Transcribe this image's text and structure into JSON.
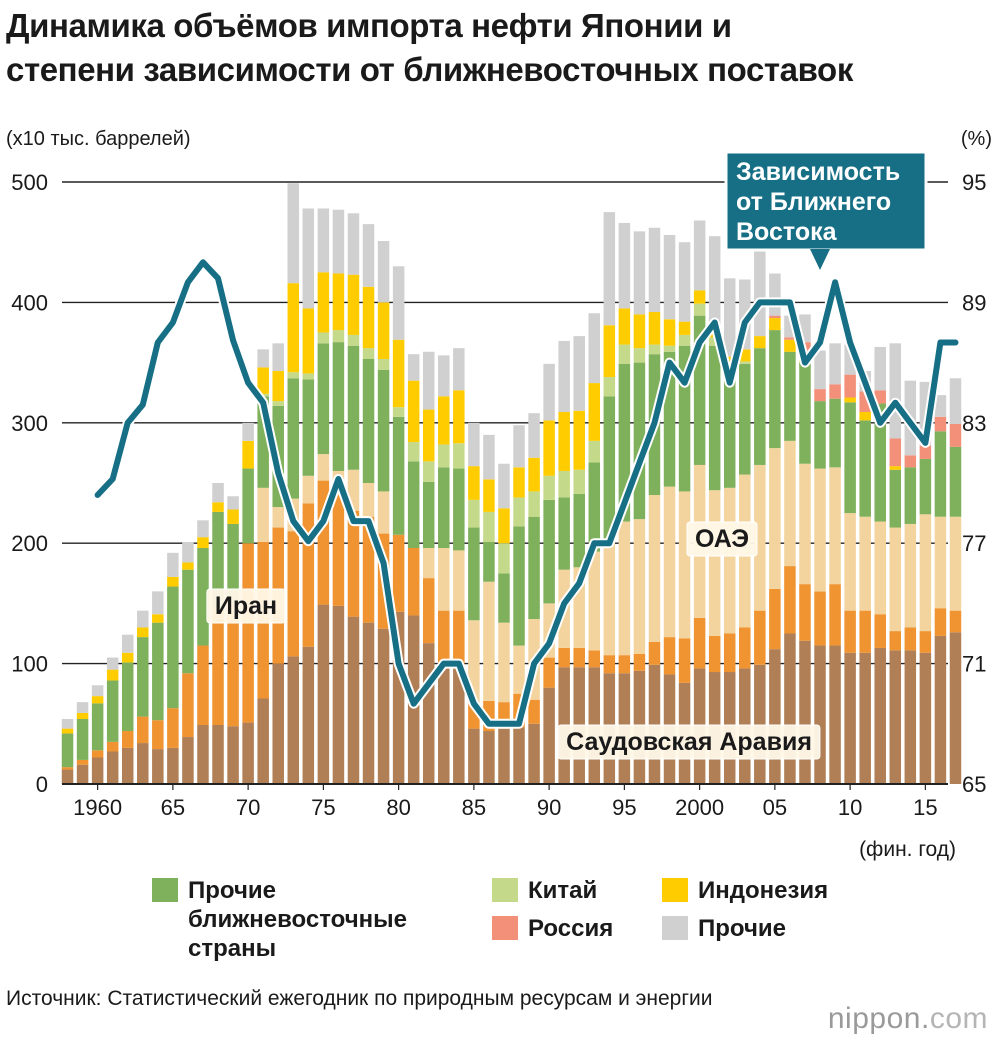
{
  "title_line1": "Динамика объёмов импорта нефти Японии и",
  "title_line2": "степени зависимости от ближневосточных поставок",
  "unit_left": "(x10 тыс. баррелей)",
  "unit_right": "(%)",
  "xaxis_unit": "(фин. год)",
  "legend": [
    {
      "label": "Прочие ближневосточные страны",
      "color": "#7fb05c"
    },
    {
      "label": "Китай",
      "color": "#c5d98a"
    },
    {
      "label": "Индонезия",
      "color": "#ffcc00"
    },
    {
      "label": "Россия",
      "color": "#f2907a"
    },
    {
      "label": "Прочие",
      "color": "#d0d0d0"
    }
  ],
  "legend_lines": [
    "Прочие",
    "ближневосточные",
    "страны"
  ],
  "source": "Источник: Статистический ежегодник по природным ресурсам и энергии",
  "brand": {
    "name": "nippon",
    "dot": ".",
    "tld": "com"
  },
  "chart_data": {
    "type": "bar",
    "title": "Динамика объёмов импорта нефти Японии и степени зависимости от ближневосточных поставок",
    "ylabel": "(x10 тыс. баррелей)",
    "y2label": "(%)",
    "xlabel": "(фин. год)",
    "ylim": [
      0,
      500
    ],
    "y2lim": [
      65,
      95
    ],
    "yticks": [
      0,
      100,
      200,
      300,
      400,
      500
    ],
    "y2ticks": [
      65,
      71,
      77,
      83,
      89,
      95
    ],
    "xtick_labels": [
      {
        "year": 1960,
        "label": "1960"
      },
      {
        "year": 1965,
        "label": "65"
      },
      {
        "year": 1970,
        "label": "70"
      },
      {
        "year": 1975,
        "label": "75"
      },
      {
        "year": 1980,
        "label": "80"
      },
      {
        "year": 1985,
        "label": "85"
      },
      {
        "year": 1990,
        "label": "90"
      },
      {
        "year": 1995,
        "label": "95"
      },
      {
        "year": 2000,
        "label": "2000"
      },
      {
        "year": 2005,
        "label": "05"
      },
      {
        "year": 2010,
        "label": "10"
      },
      {
        "year": 2015,
        "label": "15"
      }
    ],
    "grid": "y-major",
    "stacked": true,
    "years": [
      1958,
      1959,
      1960,
      1961,
      1962,
      1963,
      1964,
      1965,
      1966,
      1967,
      1968,
      1969,
      1970,
      1971,
      1972,
      1973,
      1974,
      1975,
      1976,
      1977,
      1978,
      1979,
      1980,
      1981,
      1982,
      1983,
      1984,
      1985,
      1986,
      1987,
      1988,
      1989,
      1990,
      1991,
      1992,
      1993,
      1994,
      1995,
      1996,
      1997,
      1998,
      1999,
      2000,
      2001,
      2002,
      2003,
      2004,
      2005,
      2006,
      2007,
      2008,
      2009,
      2010,
      2011,
      2012,
      2013,
      2014,
      2015,
      2016,
      2017
    ],
    "series": [
      {
        "name": "Саудовская Аравия",
        "color": "#b07f55",
        "values": [
          12,
          16,
          22,
          27,
          30,
          34,
          29,
          30,
          39,
          49,
          49,
          48,
          51,
          71,
          100,
          106,
          114,
          149,
          148,
          139,
          134,
          129,
          143,
          140,
          117,
          97,
          99,
          46,
          44,
          46,
          47,
          50,
          80,
          97,
          97,
          97,
          92,
          92,
          94,
          99,
          91,
          84,
          96,
          93,
          93,
          96,
          99,
          112,
          125,
          119,
          115,
          115,
          109,
          109,
          113,
          111,
          111,
          109,
          123,
          126
        ]
      },
      {
        "name": "Иран",
        "color": "#ef9430",
        "values": [
          2,
          4,
          6,
          8,
          14,
          22,
          24,
          33,
          53,
          66,
          97,
          102,
          149,
          130,
          113,
          104,
          119,
          103,
          92,
          88,
          88,
          79,
          64,
          56,
          54,
          47,
          45,
          20,
          25,
          22,
          28,
          20,
          25,
          16,
          16,
          14,
          15,
          15,
          14,
          19,
          31,
          37,
          42,
          30,
          32,
          34,
          45,
          50,
          56,
          47,
          45,
          51,
          35,
          35,
          28,
          16,
          19,
          18,
          23,
          18
        ]
      },
      {
        "name": "ОАЭ",
        "color": "#f4d49e",
        "values": [
          0,
          0,
          0,
          0,
          0,
          0,
          0,
          0,
          0,
          0,
          0,
          0,
          0,
          45,
          17,
          27,
          23,
          22,
          20,
          34,
          28,
          35,
          0,
          0,
          25,
          52,
          50,
          70,
          99,
          66,
          40,
          67,
          45,
          65,
          67,
          82,
          96,
          111,
          112,
          122,
          125,
          122,
          127,
          121,
          121,
          127,
          121,
          117,
          104,
          100,
          102,
          97,
          81,
          78,
          77,
          86,
          86,
          97,
          76,
          78
        ]
      },
      {
        "name": "Прочие ближневосточные страны",
        "color": "#7fb05c",
        "values": [
          28,
          34,
          39,
          51,
          57,
          66,
          81,
          101,
          86,
          81,
          80,
          66,
          62,
          76,
          84,
          100,
          80,
          92,
          107,
          103,
          103,
          101,
          98,
          72,
          55,
          67,
          68,
          77,
          33,
          41,
          99,
          85,
          86,
          60,
          61,
          74,
          119,
          131,
          130,
          117,
          112,
          121,
          124,
          120,
          97,
          92,
          97,
          98,
          74,
          84,
          56,
          57,
          92,
          80,
          98,
          48,
          47,
          46,
          71,
          58
        ]
      },
      {
        "name": "Китай",
        "color": "#c5d98a",
        "values": [
          0,
          0,
          0,
          0,
          0,
          0,
          0,
          0,
          0,
          0,
          0,
          0,
          0,
          2,
          4,
          5,
          5,
          9,
          10,
          9,
          9,
          9,
          8,
          16,
          17,
          19,
          21,
          23,
          25,
          25,
          24,
          21,
          20,
          22,
          20,
          18,
          16,
          16,
          12,
          8,
          5,
          9,
          10,
          7,
          2,
          2,
          0,
          0,
          0,
          0,
          0,
          0,
          0,
          0,
          0,
          0,
          0,
          0,
          0,
          0
        ]
      },
      {
        "name": "Индонезия",
        "color": "#ffcc00",
        "values": [
          4,
          5,
          6,
          9,
          8,
          8,
          7,
          8,
          6,
          9,
          8,
          12,
          23,
          22,
          25,
          74,
          54,
          50,
          47,
          50,
          51,
          47,
          56,
          51,
          43,
          40,
          44,
          28,
          27,
          29,
          25,
          28,
          46,
          49,
          49,
          48,
          43,
          30,
          28,
          27,
          22,
          11,
          11,
          4,
          10,
          10,
          10,
          10,
          10,
          3,
          0,
          0,
          4,
          7,
          0,
          3,
          0,
          0,
          0,
          0
        ]
      },
      {
        "name": "Россия",
        "color": "#f2907a",
        "values": [
          0,
          0,
          0,
          0,
          0,
          0,
          0,
          0,
          0,
          0,
          0,
          0,
          0,
          0,
          0,
          0,
          0,
          0,
          0,
          0,
          0,
          0,
          0,
          0,
          0,
          0,
          0,
          0,
          0,
          0,
          0,
          0,
          0,
          0,
          0,
          0,
          0,
          0,
          0,
          0,
          0,
          0,
          0,
          0,
          0,
          0,
          0,
          2,
          2,
          14,
          10,
          12,
          19,
          17,
          11,
          23,
          10,
          11,
          12,
          19
        ]
      },
      {
        "name": "Прочие",
        "color": "#d0d0d0",
        "values": [
          8,
          9,
          9,
          10,
          15,
          14,
          19,
          20,
          17,
          14,
          16,
          11,
          15,
          15,
          23,
          83,
          83,
          53,
          53,
          51,
          52,
          51,
          61,
          22,
          48,
          34,
          35,
          36,
          37,
          37,
          35,
          37,
          47,
          59,
          62,
          58,
          94,
          71,
          69,
          70,
          70,
          66,
          58,
          80,
          65,
          58,
          72,
          35,
          18,
          23,
          32,
          34,
          25,
          17,
          36,
          79,
          62,
          53,
          18,
          38
        ]
      }
    ],
    "line": {
      "name": "Зависимость от Ближнего Востока",
      "color": "#176f86",
      "years": [
        1960,
        1961,
        1962,
        1963,
        1964,
        1965,
        1966,
        1967,
        1968,
        1969,
        1970,
        1971,
        1972,
        1973,
        1974,
        1975,
        1976,
        1977,
        1978,
        1979,
        1980,
        1981,
        1982,
        1983,
        1984,
        1985,
        1986,
        1987,
        1988,
        1989,
        1990,
        1991,
        1992,
        1993,
        1994,
        1995,
        1996,
        1997,
        1998,
        1999,
        2000,
        2001,
        2002,
        2003,
        2004,
        2005,
        2006,
        2007,
        2008,
        2009,
        2010,
        2011,
        2012,
        2013,
        2014,
        2015,
        2016,
        2017
      ],
      "values": [
        79.4,
        80.2,
        83.0,
        83.9,
        87.0,
        88.0,
        90.0,
        91.0,
        90.2,
        87.1,
        85.0,
        84.0,
        80.5,
        78.1,
        77.1,
        78.1,
        80.2,
        78.1,
        78.1,
        76.0,
        71.0,
        69.0,
        70.0,
        71.0,
        71.0,
        69.0,
        68.0,
        68.0,
        68.0,
        71.0,
        72.0,
        74.0,
        75.0,
        77.0,
        77.0,
        79.0,
        81.0,
        83.0,
        86.0,
        85.0,
        87.0,
        88.0,
        85.0,
        88.0,
        89.0,
        89.0,
        89.0,
        86.0,
        87.0,
        90.0,
        87.0,
        85.0,
        83.0,
        84.0,
        83.0,
        82.0,
        87.0,
        87.0
      ]
    },
    "annotations": [
      {
        "text": "Иран",
        "style": "box"
      },
      {
        "text": "ОАЭ",
        "style": "box"
      },
      {
        "text": "Саудовская Аравия",
        "style": "box"
      },
      {
        "text": "Зависимость от Ближнего Востока",
        "style": "callout"
      }
    ]
  }
}
